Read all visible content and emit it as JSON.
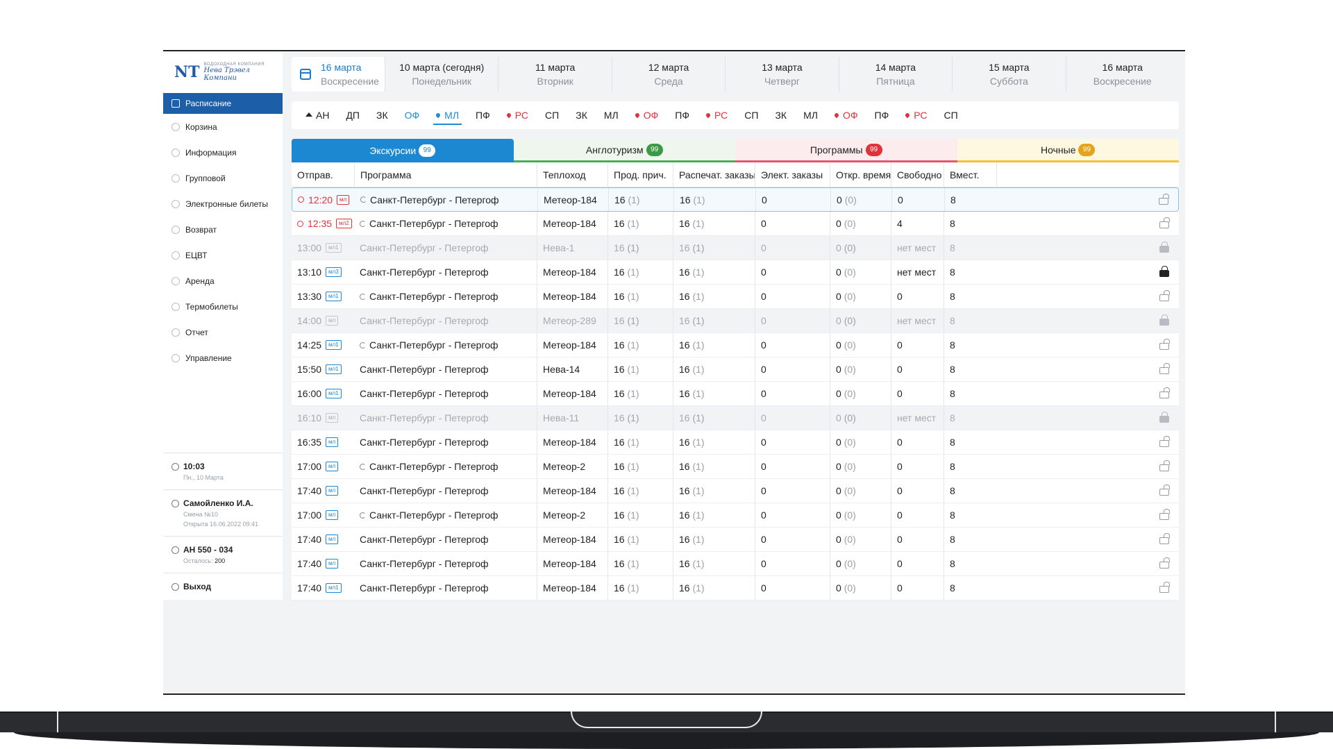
{
  "logo": {
    "mark": "NT",
    "small": "ВОДОХОДНАЯ КОМПАНИЯ",
    "name": "Нева Трэвел Компани"
  },
  "sidebar": {
    "items": [
      {
        "label": "Расписание"
      },
      {
        "label": "Корзина"
      },
      {
        "label": "Информация"
      },
      {
        "label": "Групповой"
      },
      {
        "label": "Электронные билеты"
      },
      {
        "label": "Возврат"
      },
      {
        "label": "ЕЦВТ"
      },
      {
        "label": "Аренда"
      },
      {
        "label": "Термобилеты"
      },
      {
        "label": "Отчет"
      },
      {
        "label": "Управление"
      }
    ],
    "clock": {
      "time": "10:03",
      "date": "Пн., 10 Марта"
    },
    "user": {
      "name": "Самойленко И.А.",
      "shift": "Смена №10",
      "opened": "Открыта 16.06.2022 09:41"
    },
    "ticket": {
      "code": "АН 550 - 034",
      "remaining_label": "Осталось:",
      "remaining": "200"
    },
    "logout": "Выход"
  },
  "dates": [
    {
      "top": "16 марта",
      "bot": "Воскресение"
    },
    {
      "top": "10 марта (сегодня)",
      "bot": "Понедельник"
    },
    {
      "top": "11 марта",
      "bot": "Вторник"
    },
    {
      "top": "12 марта",
      "bot": "Среда"
    },
    {
      "top": "13 марта",
      "bot": "Четверг"
    },
    {
      "top": "14 марта",
      "bot": "Пятница"
    },
    {
      "top": "15 марта",
      "bot": "Суббота"
    },
    {
      "top": "16 марта",
      "bot": "Воскресение"
    }
  ],
  "routes": [
    "АН",
    "ДП",
    "ЗК",
    "ОФ",
    "МЛ",
    "ПФ",
    "РС",
    "СП",
    "ЗК",
    "МЛ",
    "ОФ",
    "ПФ",
    "РС",
    "СП",
    "ЗК",
    "МЛ",
    "ОФ",
    "ПФ",
    "РС",
    "СП"
  ],
  "tabs": [
    {
      "label": "Экскурсии",
      "count": "99"
    },
    {
      "label": "Англотуризм",
      "count": "99"
    },
    {
      "label": "Программы",
      "count": "99"
    },
    {
      "label": "Ночные",
      "count": "99"
    }
  ],
  "columns": [
    "Отправ.",
    "Программа",
    "Теплоход",
    "Прод. прич.",
    "Распечат. заказы",
    "Элект. заказы",
    "Откр. время",
    "Свободно",
    "Вмест."
  ],
  "rows": [
    {
      "time": "12:20",
      "badge": "мл",
      "program": "Санкт-Петербург - Петергоф",
      "ship": "Метеор-184",
      "prod": "16",
      "prod2": "(1)",
      "print": "16",
      "print2": "(1)",
      "elect": "0",
      "open": "0",
      "open2": "(0)",
      "free": "0",
      "cap": "8"
    },
    {
      "time": "12:35",
      "badge": "мл2",
      "program": "Санкт-Петербург - Петергоф",
      "ship": "Метеор-184",
      "prod": "16",
      "prod2": "(1)",
      "print": "16",
      "print2": "(1)",
      "elect": "0",
      "open": "0",
      "open2": "(0)",
      "free": "4",
      "cap": "8"
    },
    {
      "time": "13:00",
      "badge": "мл1",
      "program": "Санкт-Петербург - Петергоф",
      "ship": "Нева-1",
      "prod": "16",
      "prod2": "(1)",
      "print": "16",
      "print2": "(1)",
      "elect": "0",
      "open": "0",
      "open2": "(0)",
      "free": "нет мест",
      "cap": "8"
    },
    {
      "time": "13:10",
      "badge": "мл3",
      "program": "Санкт-Петербург - Петергоф",
      "ship": "Метеор-184",
      "prod": "16",
      "prod2": "(1)",
      "print": "16",
      "print2": "(1)",
      "elect": "0",
      "open": "0",
      "open2": "(0)",
      "free": "нет мест",
      "cap": "8"
    },
    {
      "time": "13:30",
      "badge": "мл1",
      "program": "Санкт-Петербург - Петергоф",
      "ship": "Метеор-184",
      "prod": "16",
      "prod2": "(1)",
      "print": "16",
      "print2": "(1)",
      "elect": "0",
      "open": "0",
      "open2": "(0)",
      "free": "0",
      "cap": "8"
    },
    {
      "time": "14:00",
      "badge": "мл",
      "program": "Санкт-Петербург - Петергоф",
      "ship": "Метеор-289",
      "prod": "16",
      "prod2": "(1)",
      "print": "16",
      "print2": "(1)",
      "elect": "0",
      "open": "0",
      "open2": "(0)",
      "free": "нет мест",
      "cap": "8"
    },
    {
      "time": "14:25",
      "badge": "мл1",
      "program": "Санкт-Петербург - Петергоф",
      "ship": "Метеор-184",
      "prod": "16",
      "prod2": "(1)",
      "print": "16",
      "print2": "(1)",
      "elect": "0",
      "open": "0",
      "open2": "(0)",
      "free": "0",
      "cap": "8"
    },
    {
      "time": "15:50",
      "badge": "мл1",
      "program": "Санкт-Петербург - Петергоф",
      "ship": "Нева-14",
      "prod": "16",
      "prod2": "(1)",
      "print": "16",
      "print2": "(1)",
      "elect": "0",
      "open": "0",
      "open2": "(0)",
      "free": "0",
      "cap": "8"
    },
    {
      "time": "16:00",
      "badge": "мл1",
      "program": "Санкт-Петербург - Петергоф",
      "ship": "Метеор-184",
      "prod": "16",
      "prod2": "(1)",
      "print": "16",
      "print2": "(1)",
      "elect": "0",
      "open": "0",
      "open2": "(0)",
      "free": "0",
      "cap": "8"
    },
    {
      "time": "16:10",
      "badge": "мл",
      "program": "Санкт-Петербург - Петергоф",
      "ship": "Нева-11",
      "prod": "16",
      "prod2": "(1)",
      "print": "16",
      "print2": "(1)",
      "elect": "0",
      "open": "0",
      "open2": "(0)",
      "free": "нет мест",
      "cap": "8"
    },
    {
      "time": "16:35",
      "badge": "мл",
      "program": "Санкт-Петербург - Петергоф",
      "ship": "Метеор-184",
      "prod": "16",
      "prod2": "(1)",
      "print": "16",
      "print2": "(1)",
      "elect": "0",
      "open": "0",
      "open2": "(0)",
      "free": "0",
      "cap": "8"
    },
    {
      "time": "17:00",
      "badge": "мл",
      "program": "Санкт-Петербург - Петергоф",
      "ship": "Метеор-2",
      "prod": "16",
      "prod2": "(1)",
      "print": "16",
      "print2": "(1)",
      "elect": "0",
      "open": "0",
      "open2": "(0)",
      "free": "0",
      "cap": "8"
    },
    {
      "time": "17:40",
      "badge": "мл",
      "program": "Санкт-Петербург - Петергоф",
      "ship": "Метеор-184",
      "prod": "16",
      "prod2": "(1)",
      "print": "16",
      "print2": "(1)",
      "elect": "0",
      "open": "0",
      "open2": "(0)",
      "free": "0",
      "cap": "8"
    },
    {
      "time": "17:00",
      "badge": "мл",
      "program": "Санкт-Петербург - Петергоф",
      "ship": "Метеор-2",
      "prod": "16",
      "prod2": "(1)",
      "print": "16",
      "print2": "(1)",
      "elect": "0",
      "open": "0",
      "open2": "(0)",
      "free": "0",
      "cap": "8"
    },
    {
      "time": "17:40",
      "badge": "мл",
      "program": "Санкт-Петербург - Петергоф",
      "ship": "Метеор-184",
      "prod": "16",
      "prod2": "(1)",
      "print": "16",
      "print2": "(1)",
      "elect": "0",
      "open": "0",
      "open2": "(0)",
      "free": "0",
      "cap": "8"
    },
    {
      "time": "17:40",
      "badge": "мл",
      "program": "Санкт-Петербург - Петергоф",
      "ship": "Метеор-184",
      "prod": "16",
      "prod2": "(1)",
      "print": "16",
      "print2": "(1)",
      "elect": "0",
      "open": "0",
      "open2": "(0)",
      "free": "0",
      "cap": "8"
    },
    {
      "time": "17:40",
      "badge": "мл1",
      "program": "Санкт-Петербург - Петергоф",
      "ship": "Метеор-184",
      "prod": "16",
      "prod2": "(1)",
      "print": "16",
      "print2": "(1)",
      "elect": "0",
      "open": "0",
      "open2": "(0)",
      "free": "0",
      "cap": "8"
    }
  ]
}
